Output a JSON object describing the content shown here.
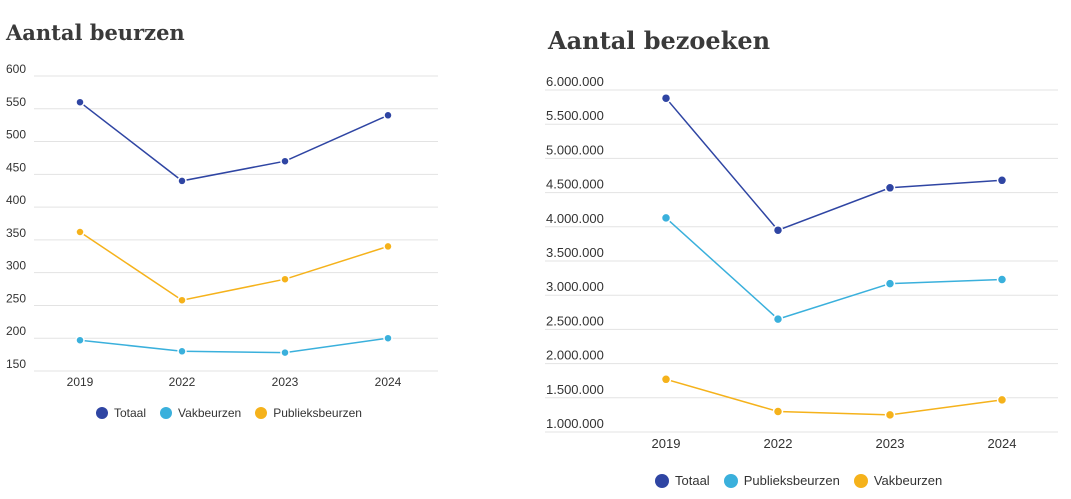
{
  "colors": {
    "totaal": "#2f45a3",
    "lightblue": "#3ab0dc",
    "yellow": "#f5b21b",
    "grid": "#e3e3e3"
  },
  "chart_data": [
    {
      "type": "line",
      "title": "Aantal beurzen",
      "xlabel": "",
      "ylabel": "",
      "categories": [
        "2019",
        "2022",
        "2023",
        "2024"
      ],
      "yticks": [
        "150",
        "200",
        "250",
        "300",
        "350",
        "400",
        "450",
        "500",
        "550",
        "600"
      ],
      "ylim": [
        150,
        600
      ],
      "grid": true,
      "legend_position": "bottom",
      "series": [
        {
          "name": "Totaal",
          "values": [
            560,
            440,
            470,
            540
          ],
          "color_key": "totaal"
        },
        {
          "name": "Vakbeurzen",
          "values": [
            197,
            180,
            178,
            200
          ],
          "color_key": "lightblue"
        },
        {
          "name": "Publieksbeurzen",
          "values": [
            362,
            258,
            290,
            340
          ],
          "color_key": "yellow"
        }
      ]
    },
    {
      "type": "line",
      "title": "Aantal bezoeken",
      "xlabel": "",
      "ylabel": "",
      "categories": [
        "2019",
        "2022",
        "2023",
        "2024"
      ],
      "yticks": [
        "1.000.000",
        "1.500.000",
        "2.000.000",
        "2.500.000",
        "3.000.000",
        "3.500.000",
        "4.000.000",
        "4.500.000",
        "5.000.000",
        "5.500.000",
        "6.000.000"
      ],
      "ylim": [
        1000000,
        6000000
      ],
      "grid": true,
      "legend_position": "bottom",
      "series": [
        {
          "name": "Totaal",
          "values": [
            5880000,
            3950000,
            4570000,
            4680000
          ],
          "color_key": "totaal"
        },
        {
          "name": "Publieksbeurzen",
          "values": [
            4130000,
            2650000,
            3170000,
            3230000
          ],
          "color_key": "lightblue"
        },
        {
          "name": "Vakbeurzen",
          "values": [
            1770000,
            1300000,
            1250000,
            1470000
          ],
          "color_key": "yellow"
        }
      ]
    }
  ]
}
